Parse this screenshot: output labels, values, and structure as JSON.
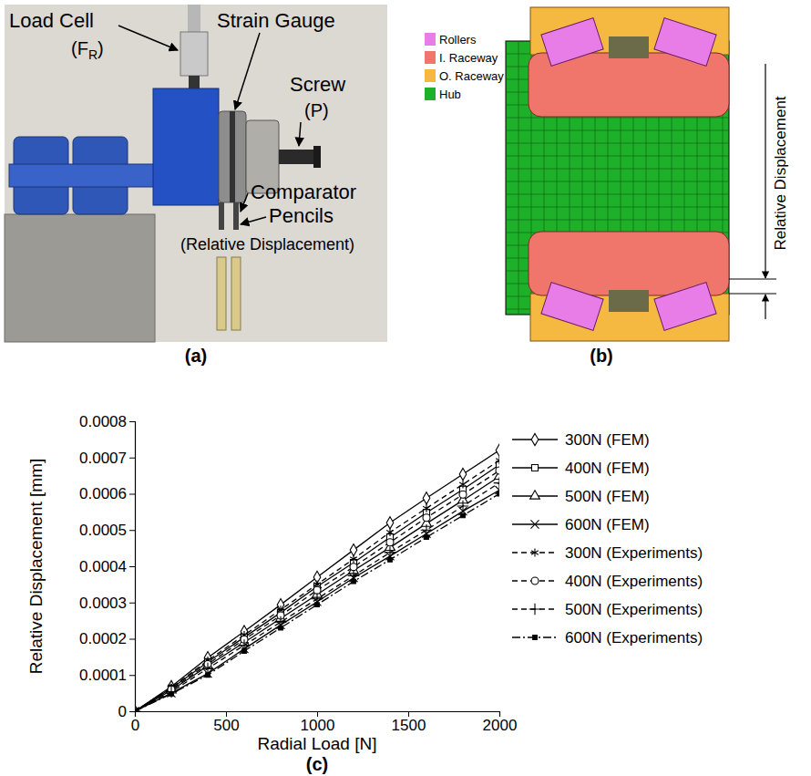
{
  "photo": {
    "panel_label": "(a)",
    "load_cell": "Load Cell",
    "load_cell_symbol": [
      "(F",
      "R",
      ")"
    ],
    "strain_gauge": "Strain Gauge",
    "screw": "Screw",
    "screw_symbol": "(P)",
    "comparator": [
      "Comparator",
      "Pencils"
    ],
    "comparator_note": "(Relative Displacement)"
  },
  "diagram": {
    "panel_label": "(b)",
    "legend": [
      {
        "name": "Rollers",
        "color": "#e87de8"
      },
      {
        "name": "I. Raceway",
        "color": "#f0766b"
      },
      {
        "name": "O. Raceway",
        "color": "#f5b840"
      },
      {
        "name": "Hub",
        "color": "#1fb02a"
      }
    ],
    "dimension_label": "Relative Displacement"
  },
  "chart_data": {
    "type": "line",
    "annotations": [
      "(c)"
    ],
    "xlabel": "Radial Load [N]",
    "ylabel": "Relative Displacement [mm]",
    "x": [
      0,
      200,
      400,
      600,
      800,
      1000,
      1200,
      1400,
      1600,
      1800,
      2000
    ],
    "xlim": [
      0,
      2000
    ],
    "xticks": [
      0,
      500,
      1000,
      1500,
      2000
    ],
    "ylim": [
      0,
      0.0008
    ],
    "yticks": [
      0,
      0.0001,
      0.0002,
      0.0003,
      0.0004,
      0.0005,
      0.0006,
      0.0007,
      0.0008
    ],
    "grid": false,
    "legend": "right",
    "series": [
      {
        "name": "300N (FEM)",
        "color": "#000000",
        "marker": "diamond",
        "line_style": "solid",
        "values": [
          0,
          6.8e-05,
          0.000148,
          0.00022,
          0.000294,
          0.00037,
          0.000445,
          0.00052,
          0.000588,
          0.000654,
          0.00072
        ]
      },
      {
        "name": "400N (FEM)",
        "color": "#000000",
        "marker": "square",
        "line_style": "solid",
        "values": [
          0,
          6.3e-05,
          0.000136,
          0.000204,
          0.000272,
          0.000344,
          0.00041,
          0.00048,
          0.000548,
          0.000612,
          0.00068
        ]
      },
      {
        "name": "500N (FEM)",
        "color": "#000000",
        "marker": "triangle",
        "line_style": "solid",
        "values": [
          0,
          5.8e-05,
          0.000125,
          0.00019,
          0.000256,
          0.000322,
          0.000388,
          0.000452,
          0.000518,
          0.000582,
          0.000648
        ]
      },
      {
        "name": "600N (FEM)",
        "color": "#000000",
        "marker": "x",
        "line_style": "solid",
        "values": [
          0,
          5e-05,
          0.000104,
          0.000172,
          0.000238,
          0.000302,
          0.000368,
          0.000428,
          0.00049,
          0.000552,
          0.00061
        ]
      },
      {
        "name": "300N (Experiments)",
        "color": "#000000",
        "marker": "asterisk",
        "line_style": "dashed",
        "values": [
          0,
          6.5e-05,
          0.00014,
          0.00021,
          0.00028,
          0.00035,
          0.00042,
          0.000494,
          0.00056,
          0.000626,
          0.000692
        ]
      },
      {
        "name": "400N (Experiments)",
        "color": "#000000",
        "marker": "circle",
        "line_style": "dashed",
        "values": [
          0,
          6e-05,
          0.00013,
          0.000198,
          0.000264,
          0.000334,
          0.000398,
          0.000466,
          0.000534,
          0.000598,
          0.000664
        ]
      },
      {
        "name": "500N (Experiments)",
        "color": "#000000",
        "marker": "plus",
        "line_style": "dashed",
        "values": [
          0,
          5.4e-05,
          0.000118,
          0.000182,
          0.000246,
          0.00031,
          0.000374,
          0.000438,
          0.0005,
          0.000566,
          0.00063
        ]
      },
      {
        "name": "600N (Experiments)",
        "color": "#000000",
        "marker": "filled-square",
        "line_style": "dash-dot",
        "values": [
          0,
          4.8e-05,
          0.0001,
          0.000166,
          0.00023,
          0.000294,
          0.000358,
          0.000418,
          0.00048,
          0.00054,
          0.0006
        ]
      }
    ]
  }
}
